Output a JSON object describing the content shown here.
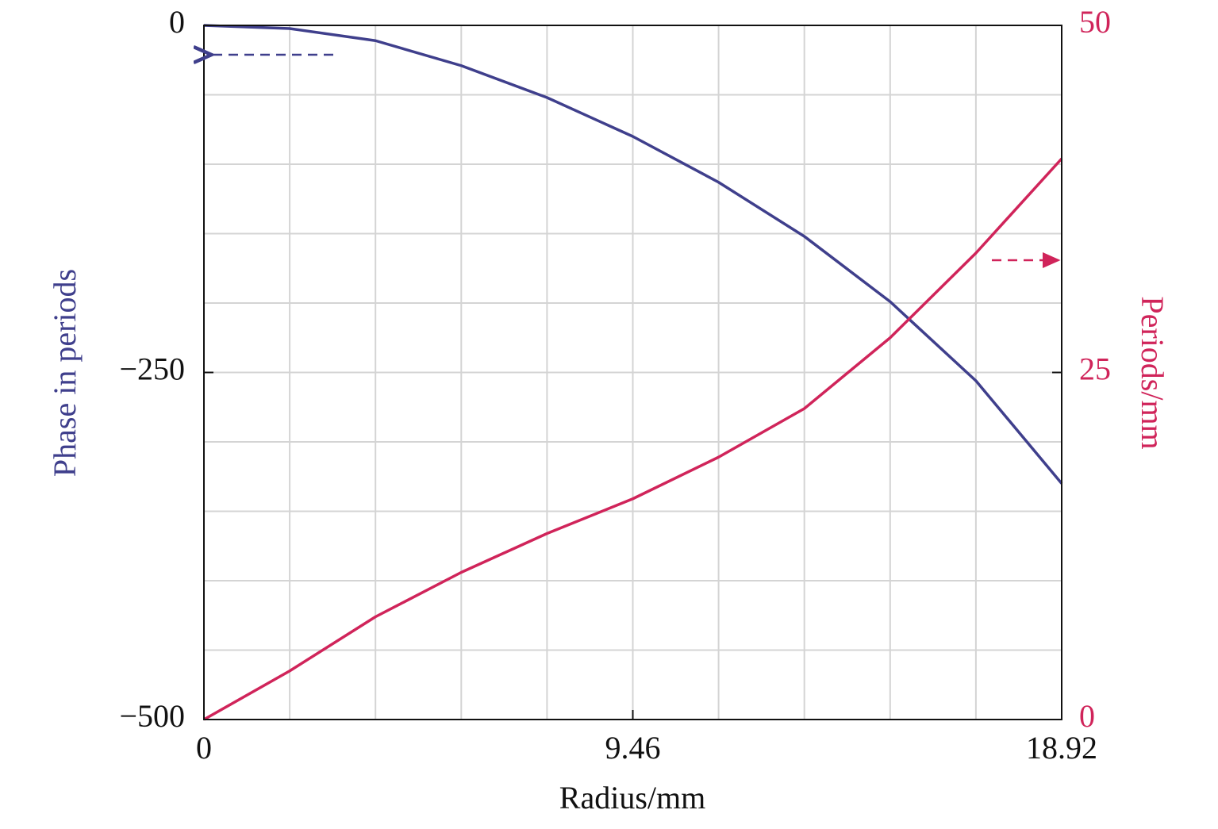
{
  "chart_data": {
    "type": "line",
    "x_label": "Radius/mm",
    "y_label": "Phase in periods",
    "y2_label": "Periods/mm",
    "x": [
      0,
      1.892,
      3.784,
      5.676,
      7.568,
      9.46,
      11.352,
      13.244,
      15.136,
      17.028,
      18.92
    ],
    "series": [
      {
        "name": "Phase in periods",
        "color": "#3f3f8c",
        "axis": "y",
        "values": [
          0,
          -2.3,
          -11,
          -29,
          -52,
          -80,
          -113,
          -152,
          -199,
          -256,
          -330
        ]
      },
      {
        "name": "Periods/mm",
        "color": "#d0245a",
        "axis": "y2",
        "values": [
          0,
          3.5,
          7.4,
          10.6,
          13.4,
          15.9,
          18.9,
          22.4,
          27.5,
          33.6,
          40.4
        ]
      }
    ],
    "xlim": [
      0,
      18.92
    ],
    "xticks": [
      0,
      9.46,
      18.92
    ],
    "ylim": [
      -500,
      0
    ],
    "yticks": [
      {
        "value": -500,
        "label": "−500"
      },
      {
        "value": -250,
        "label": "−250"
      },
      0
    ],
    "y2lim": [
      0,
      50
    ],
    "y2ticks": [
      0,
      25,
      50
    ],
    "grid": true,
    "xgrid": [
      1.892,
      3.784,
      5.676,
      7.568,
      9.46,
      11.352,
      13.244,
      15.136,
      17.028
    ],
    "ygrid": [
      -450,
      -400,
      -350,
      -300,
      -250,
      -200,
      -150,
      -100,
      -50
    ]
  }
}
